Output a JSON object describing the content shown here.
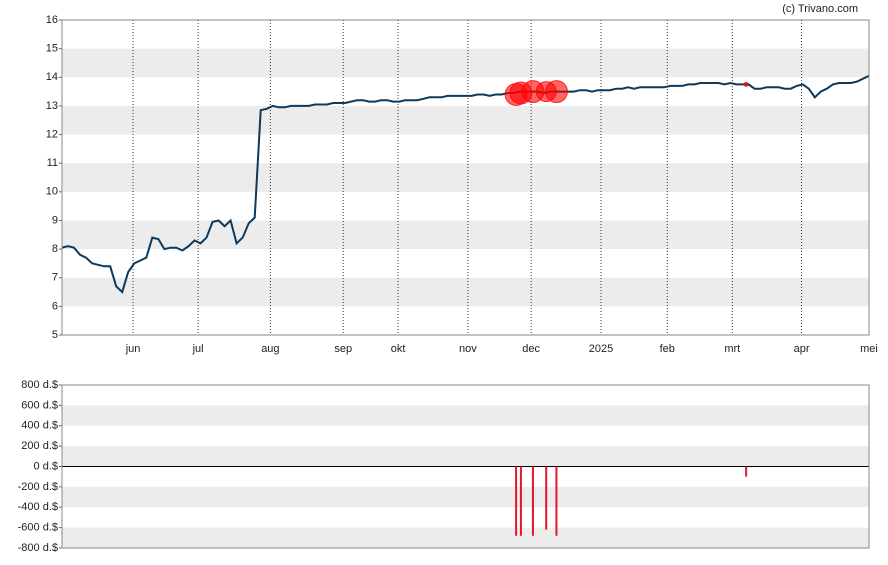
{
  "chart_data": [
    {
      "type": "line",
      "source": "(c) Trivano.com",
      "color": "#0d3a5c",
      "values": [
        8.05,
        8.1,
        8.05,
        7.8,
        7.7,
        7.5,
        7.45,
        7.4,
        7.4,
        6.7,
        6.5,
        7.2,
        7.5,
        7.6,
        7.7,
        8.4,
        8.35,
        8.0,
        8.05,
        8.05,
        7.95,
        8.1,
        8.3,
        8.2,
        8.4,
        8.95,
        9.0,
        8.8,
        9.0,
        8.2,
        8.4,
        8.9,
        9.1,
        12.85,
        12.9,
        13.0,
        12.95,
        12.95,
        13.0,
        13.0,
        13.0,
        13.0,
        13.05,
        13.05,
        13.05,
        13.1,
        13.1,
        13.1,
        13.15,
        13.2,
        13.2,
        13.15,
        13.15,
        13.2,
        13.2,
        13.15,
        13.15,
        13.2,
        13.2,
        13.2,
        13.25,
        13.3,
        13.3,
        13.3,
        13.35,
        13.35,
        13.35,
        13.35,
        13.35,
        13.4,
        13.4,
        13.35,
        13.4,
        13.4,
        13.45,
        13.45,
        13.5,
        13.5,
        13.5,
        13.5,
        13.45,
        13.5,
        13.5,
        13.5,
        13.5,
        13.5,
        13.55,
        13.55,
        13.5,
        13.55,
        13.55,
        13.55,
        13.6,
        13.6,
        13.65,
        13.6,
        13.65,
        13.65,
        13.65,
        13.65,
        13.65,
        13.7,
        13.7,
        13.7,
        13.75,
        13.75,
        13.8,
        13.8,
        13.8,
        13.8,
        13.75,
        13.8,
        13.75,
        13.75,
        13.75,
        13.6,
        13.6,
        13.65,
        13.65,
        13.65,
        13.6,
        13.6,
        13.7,
        13.75,
        13.6,
        13.3,
        13.5,
        13.6,
        13.75,
        13.8,
        13.8,
        13.8,
        13.85,
        13.95,
        14.05
      ],
      "xlim": [
        0,
        134
      ],
      "xticks": [
        {
          "value": 11.8,
          "label": "jun"
        },
        {
          "value": 22.6,
          "label": "jul"
        },
        {
          "value": 34.6,
          "label": "aug"
        },
        {
          "value": 46.7,
          "label": "sep"
        },
        {
          "value": 55.8,
          "label": "okt"
        },
        {
          "value": 67.4,
          "label": "nov"
        },
        {
          "value": 77.9,
          "label": "dec"
        },
        {
          "value": 89.5,
          "label": "2025"
        },
        {
          "value": 100.5,
          "label": "feb"
        },
        {
          "value": 111.3,
          "label": "mrt"
        },
        {
          "value": 122.8,
          "label": "apr"
        },
        {
          "value": 134,
          "label": "mei"
        }
      ],
      "ylim": [
        5,
        16
      ],
      "yticks": [
        5,
        6,
        7,
        8,
        9,
        10,
        11,
        12,
        13,
        14,
        15,
        16
      ],
      "markers": {
        "color": "#ff0000",
        "x": [
          75.4,
          76.2,
          78.2,
          80.4,
          82.1,
          113.6
        ],
        "values": [
          13.4,
          13.45,
          13.5,
          13.5,
          13.5,
          13.75
        ]
      }
    },
    {
      "type": "bar",
      "color": "#e8142c",
      "x": [
        75.4,
        76.2,
        78.2,
        80.4,
        82.1,
        113.6
      ],
      "values": [
        -680,
        -680,
        -680,
        -620,
        -680,
        -100
      ],
      "xlim": [
        0,
        134
      ],
      "ylim": [
        -800,
        800
      ],
      "yticks": [
        {
          "value": -800,
          "label": "-800 d.$"
        },
        {
          "value": -600,
          "label": "-600 d.$"
        },
        {
          "value": -400,
          "label": "-400 d.$"
        },
        {
          "value": -200,
          "label": "-200 d.$"
        },
        {
          "value": 0,
          "label": "0 d.$"
        },
        {
          "value": 200,
          "label": "200 d.$"
        },
        {
          "value": 400,
          "label": "400 d.$"
        },
        {
          "value": 600,
          "label": "600 d.$"
        },
        {
          "value": 800,
          "label": "800 d.$"
        }
      ]
    }
  ]
}
